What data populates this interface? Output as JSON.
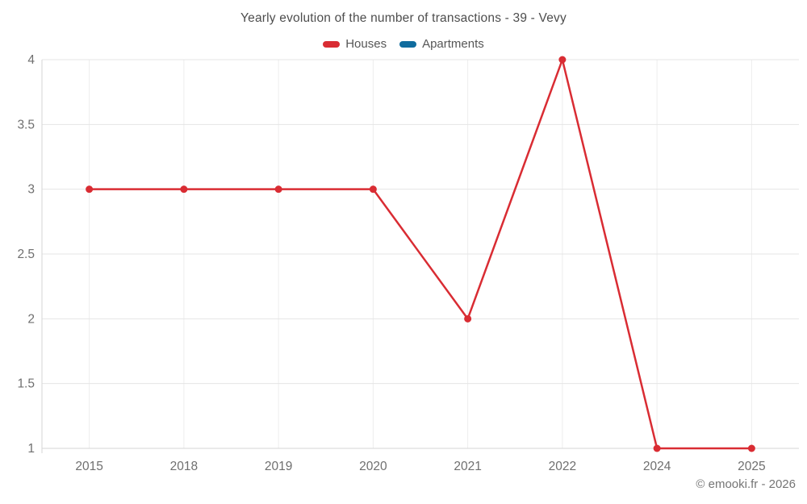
{
  "chart_data": {
    "type": "line",
    "title": "Yearly evolution of the number of transactions - 39 - Vevy",
    "categories": [
      "2015",
      "2018",
      "2019",
      "2020",
      "2021",
      "2022",
      "2024",
      "2025"
    ],
    "series": [
      {
        "name": "Houses",
        "color": "#d92c33",
        "values": [
          3,
          3,
          3,
          3,
          2,
          4,
          1,
          1
        ]
      },
      {
        "name": "Apartments",
        "color": "#106c9e",
        "values": []
      }
    ],
    "xlabel": "",
    "ylabel": "",
    "ylim": [
      1,
      4
    ],
    "y_ticks": [
      "1",
      "1.5",
      "2",
      "2.5",
      "3",
      "3.5",
      "4"
    ],
    "grid": true,
    "legend_position": "top"
  },
  "footer": {
    "copyright": "© emooki.fr - 2026"
  },
  "colors": {
    "houses": "#d92c33",
    "apartments": "#106c9e",
    "gridline_h": "#e5e5e5",
    "gridline_v": "#ededed",
    "axis_line": "#d6d6d6",
    "tick_label": "#6f6f6f",
    "title_text": "#4d4d4d"
  }
}
